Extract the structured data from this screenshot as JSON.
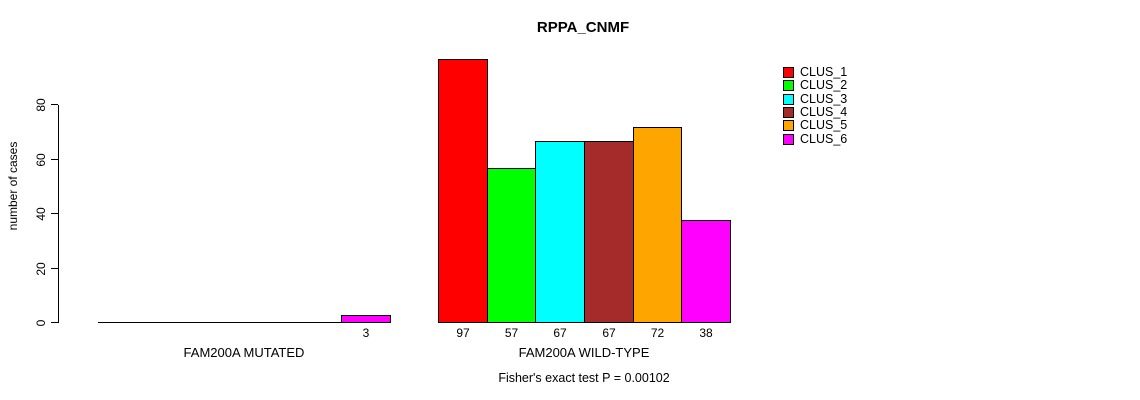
{
  "chart_data": {
    "type": "bar",
    "title": "RPPA_CNMF",
    "ylabel": "number of cases",
    "xlabel": "",
    "ylim": [
      0,
      80
    ],
    "yticks": [
      0,
      20,
      40,
      60,
      80
    ],
    "grid": false,
    "legend_position": "right-outside",
    "series": [
      {
        "name": "CLUS_1",
        "color": "#FF0000"
      },
      {
        "name": "CLUS_2",
        "color": "#00FF00"
      },
      {
        "name": "CLUS_3",
        "color": "#00FFFF"
      },
      {
        "name": "CLUS_4",
        "color": "#A52A2A"
      },
      {
        "name": "CLUS_5",
        "color": "#FFA500"
      },
      {
        "name": "CLUS_6",
        "color": "#FF00FF"
      }
    ],
    "groups": [
      {
        "label": "FAM200A MUTATED",
        "values": [
          0,
          0,
          0,
          0,
          0,
          3
        ]
      },
      {
        "label": "FAM200A WILD-TYPE",
        "values": [
          97,
          57,
          67,
          67,
          72,
          38
        ]
      }
    ],
    "annotation": "Fisher's exact test P = 0.00102"
  }
}
